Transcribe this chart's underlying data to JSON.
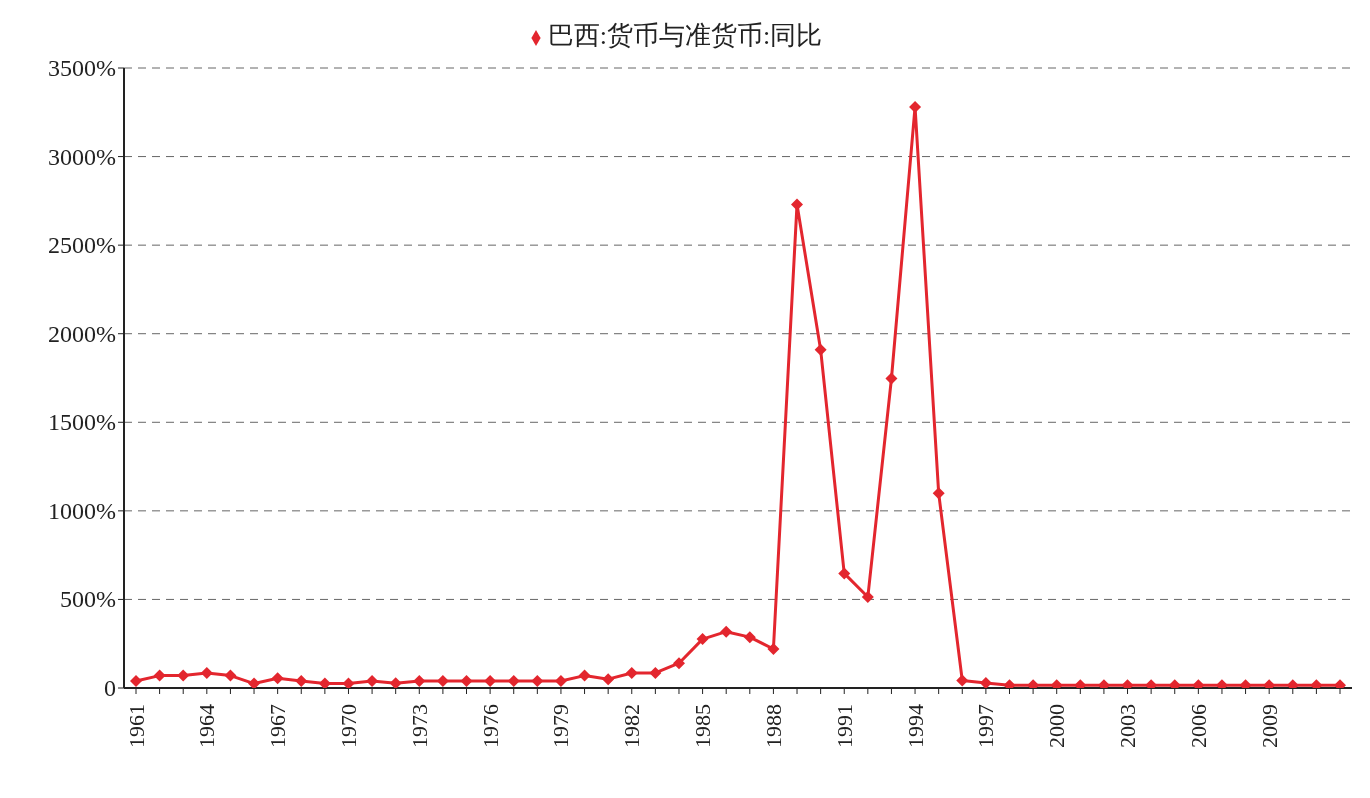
{
  "chart_data": {
    "type": "line",
    "categories": [
      "1961",
      null,
      null,
      "1964",
      null,
      null,
      "1967",
      null,
      null,
      "1970",
      null,
      null,
      "1973",
      null,
      null,
      "1976",
      null,
      null,
      "1979",
      null,
      null,
      "1982",
      null,
      null,
      "1985",
      null,
      null,
      "1988",
      null,
      null,
      "1991",
      null,
      null,
      "1994",
      null,
      null,
      "1997",
      null,
      null,
      "2000",
      null,
      null,
      "2003",
      null,
      null,
      "2006",
      null,
      null,
      "2009",
      null,
      null,
      null
    ],
    "series": [
      {
        "name": "巴西:货币与准货币:同比",
        "color": "#e3262e",
        "values": [
          40,
          70,
          70,
          85,
          70,
          25,
          55,
          40,
          25,
          25,
          40,
          27,
          40,
          40,
          40,
          40,
          40,
          40,
          40,
          70,
          50,
          85,
          85,
          140,
          276,
          318,
          287,
          220,
          2730,
          1910,
          647,
          514,
          1747,
          3280,
          1100,
          42,
          28,
          15,
          15,
          15,
          15,
          15,
          15,
          15,
          15,
          15,
          15,
          15,
          15,
          15,
          15,
          15
        ]
      }
    ],
    "ylim": [
      0,
      3500
    ],
    "yticks": [
      0,
      {
        "value": 500,
        "label": "500%"
      },
      {
        "value": 1000,
        "label": "1000%"
      },
      {
        "value": 1500,
        "label": "1500%"
      },
      {
        "value": 2000,
        "label": "2000%"
      },
      {
        "value": 2500,
        "label": "2500%"
      },
      {
        "value": 3000,
        "label": "3000%"
      },
      {
        "value": 3500,
        "label": "3500%"
      }
    ],
    "grid": "y",
    "legend": "top",
    "marker": "diamond",
    "line_style": "solid"
  }
}
